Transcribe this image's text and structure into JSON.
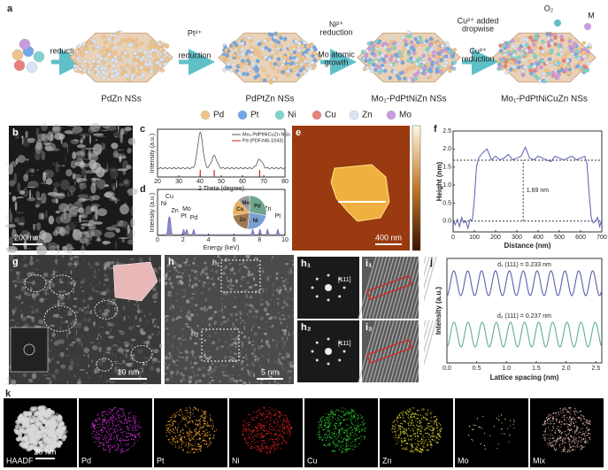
{
  "a": {
    "label": "a",
    "step1": "reduction",
    "step2": [
      "Pt²⁺",
      "reduction"
    ],
    "step3": [
      "Ni²⁺",
      "reduction",
      "Mo atomic",
      "growth"
    ],
    "step4": [
      "Cu²⁺ added",
      "dropwise",
      "Cu²⁺",
      "reduction"
    ],
    "products": [
      "PdZn NSs",
      "PdPtZn NSs",
      "Mo₁-PdPtNiZn NSs",
      "Mo₁-PdPtNiCuZn NSs"
    ],
    "o2": "O₂",
    "m": "M"
  },
  "elements": [
    {
      "name": "Pd",
      "color": "#f0c48c"
    },
    {
      "name": "Pt",
      "color": "#6fa8e8"
    },
    {
      "name": "Ni",
      "color": "#7fd3cf"
    },
    {
      "name": "Cu",
      "color": "#e8807a"
    },
    {
      "name": "Zn",
      "color": "#d8e4f4"
    },
    {
      "name": "Mo",
      "color": "#c89be0"
    }
  ],
  "b": {
    "label": "b",
    "scale": "200 nm"
  },
  "c": {
    "label": "c",
    "ylabel": "Intensity (a.u.)",
    "xlabel": "2 Theta (degree)",
    "xlim": [
      20,
      80
    ],
    "xticks": [
      20,
      30,
      40,
      50,
      60,
      70,
      80
    ],
    "legend": [
      "Mo₁-PdPtNiCuZn NSs",
      "Pd (PDF#46-1043)"
    ],
    "ref_peaks": [
      40.1,
      46.7,
      68.1
    ]
  },
  "d": {
    "label": "d",
    "ylabel": "Intensity (a.u.)",
    "xlabel": "Energy (keV)",
    "xlim": [
      0,
      10
    ],
    "xticks": [
      0,
      2,
      4,
      6,
      8,
      10
    ],
    "peaks": [
      {
        "label": "Cu",
        "x": 0.93
      },
      {
        "label": "Ni",
        "x": 0.85
      },
      {
        "label": "Zn",
        "x": 1.01
      },
      {
        "label": "Mo",
        "x": 2.29
      },
      {
        "label": "Pt",
        "x": 2.05
      },
      {
        "label": "Pd",
        "x": 2.84
      },
      {
        "label": "Ni",
        "x": 7.47
      },
      {
        "label": "Cu",
        "x": 8.04
      },
      {
        "label": "Zn",
        "x": 8.63
      },
      {
        "label": "Pt",
        "x": 9.44
      }
    ],
    "pie": {
      "categories": [
        "Pd",
        "Ni",
        "Zn",
        "Cu",
        "Mo"
      ],
      "values": [
        28,
        24,
        20,
        16,
        12
      ],
      "colors": [
        "#6fa58c",
        "#7a9fd4",
        "#a07850",
        "#e8b060",
        "#9a9a9a"
      ]
    }
  },
  "e": {
    "label": "e",
    "scale": "400 nm"
  },
  "f": {
    "label": "f",
    "type": "line",
    "ylabel": "Height (nm)",
    "xlabel": "Distance (nm)",
    "xlim": [
      0,
      700
    ],
    "xticks": [
      0,
      100,
      200,
      300,
      400,
      500,
      600,
      700
    ],
    "ylim": [
      -0.3,
      2.5
    ],
    "yticks": [
      {
        "value": 0,
        "label": "0.0"
      },
      0.5,
      {
        "value": 1,
        "label": "1.0"
      },
      1.5,
      {
        "value": 2,
        "label": "2.0"
      },
      2.5
    ],
    "x": [
      0,
      10,
      20,
      30,
      40,
      50,
      60,
      70,
      80,
      90,
      100,
      110,
      120,
      140,
      160,
      180,
      200,
      220,
      240,
      260,
      280,
      300,
      320,
      340,
      360,
      380,
      400,
      420,
      440,
      460,
      480,
      500,
      520,
      540,
      560,
      580,
      600,
      620,
      630,
      640,
      650,
      660,
      670,
      680,
      690,
      700
    ],
    "values": [
      0,
      -0.1,
      0.05,
      -0.15,
      0.1,
      -0.05,
      0,
      -0.2,
      0.05,
      0,
      0.6,
      1.5,
      1.75,
      1.9,
      2.0,
      1.7,
      1.8,
      1.7,
      1.75,
      1.85,
      1.7,
      1.75,
      1.8,
      2.05,
      1.75,
      1.7,
      1.8,
      1.75,
      1.7,
      1.65,
      1.8,
      1.75,
      1.7,
      1.75,
      1.8,
      1.7,
      1.75,
      1.8,
      1.6,
      0.8,
      0.1,
      -0.05,
      0,
      0.1,
      -0.15,
      0.05
    ],
    "color": "#5a5fb0",
    "levels": [
      0,
      1.69
    ],
    "level_label": "1.69 nm"
  },
  "g": {
    "label": "g",
    "scale": "10 nm"
  },
  "h": {
    "label": "h",
    "scale": "5 nm",
    "h1": "h₁",
    "h2": "h₂"
  },
  "h1": {
    "label": "h₁",
    "spot": "[111]"
  },
  "h2": {
    "label": "h₂",
    "spot": "[111]"
  },
  "i1": {
    "label": "i₁"
  },
  "i2": {
    "label": "i₂"
  },
  "j": {
    "label": "j",
    "ylabel": "Intensity (a.u.)",
    "xlabel": "Lattice spacing (nm)",
    "xlim": [
      0,
      2.6
    ],
    "xticks": [
      {
        "value": 0,
        "label": "0.0"
      },
      0.5,
      {
        "value": 1,
        "label": "1.0"
      },
      1.5,
      {
        "value": 2,
        "label": "2.0"
      },
      2.5
    ],
    "series": [
      {
        "name": "d₁ (111) = 0.233 nm",
        "period": 0.233,
        "color": "#5a5fb0"
      },
      {
        "name": "d₂ (111) = 0.237 nm",
        "period": 0.237,
        "color": "#5fae94"
      }
    ]
  },
  "k": {
    "label": "k",
    "scale": "20 nm",
    "maps": [
      {
        "name": "HAADF",
        "color": "#d8d8d8"
      },
      {
        "name": "Pd",
        "color": "#d030d8"
      },
      {
        "name": "Pt",
        "color": "#f0a030"
      },
      {
        "name": "Ni",
        "color": "#e02020"
      },
      {
        "name": "Cu",
        "color": "#30d030"
      },
      {
        "name": "Zn",
        "color": "#e8e030"
      },
      {
        "name": "Mo",
        "color": "#c8f0a0"
      },
      {
        "name": "Mix",
        "color": "#e8c0b0"
      }
    ]
  }
}
